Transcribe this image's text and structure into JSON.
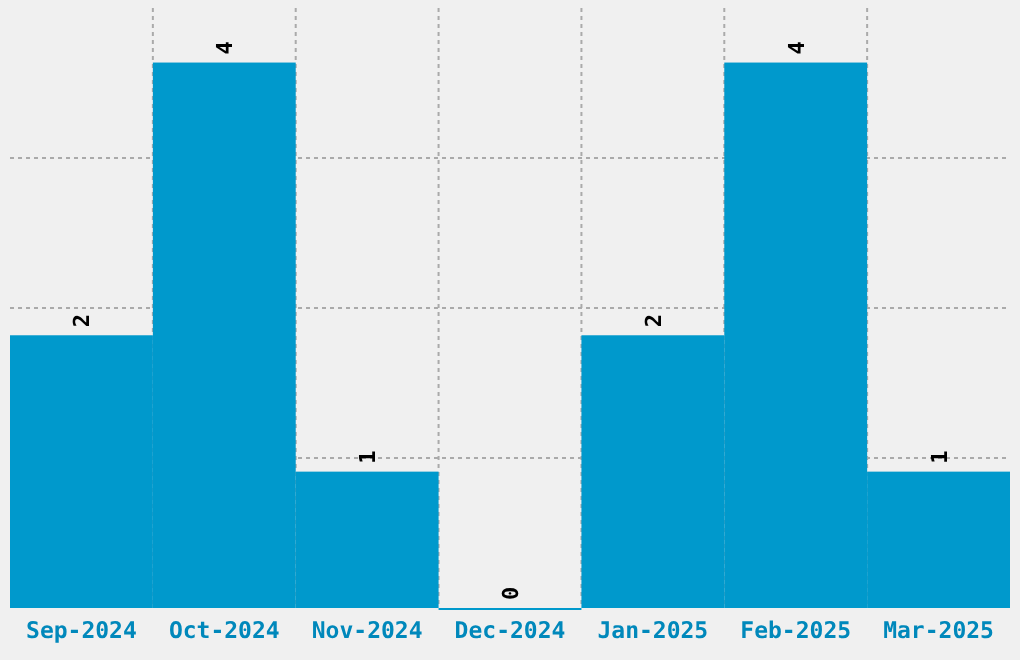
{
  "chart_data": {
    "type": "bar",
    "categories": [
      "Sep-2024",
      "Oct-2024",
      "Nov-2024",
      "Dec-2024",
      "Jan-2025",
      "Feb-2025",
      "Mar-2025"
    ],
    "values": [
      2,
      4,
      1,
      0,
      2,
      4,
      1
    ],
    "color": "#0099cc",
    "data_labels": true,
    "ylim": [
      0,
      4.4
    ],
    "yticks": [
      {
        "value": 1.1,
        "label": null
      },
      {
        "value": 2.2,
        "label": null
      },
      {
        "value": 3.3,
        "label": null
      }
    ],
    "grid": true,
    "tick_labels": "x"
  }
}
